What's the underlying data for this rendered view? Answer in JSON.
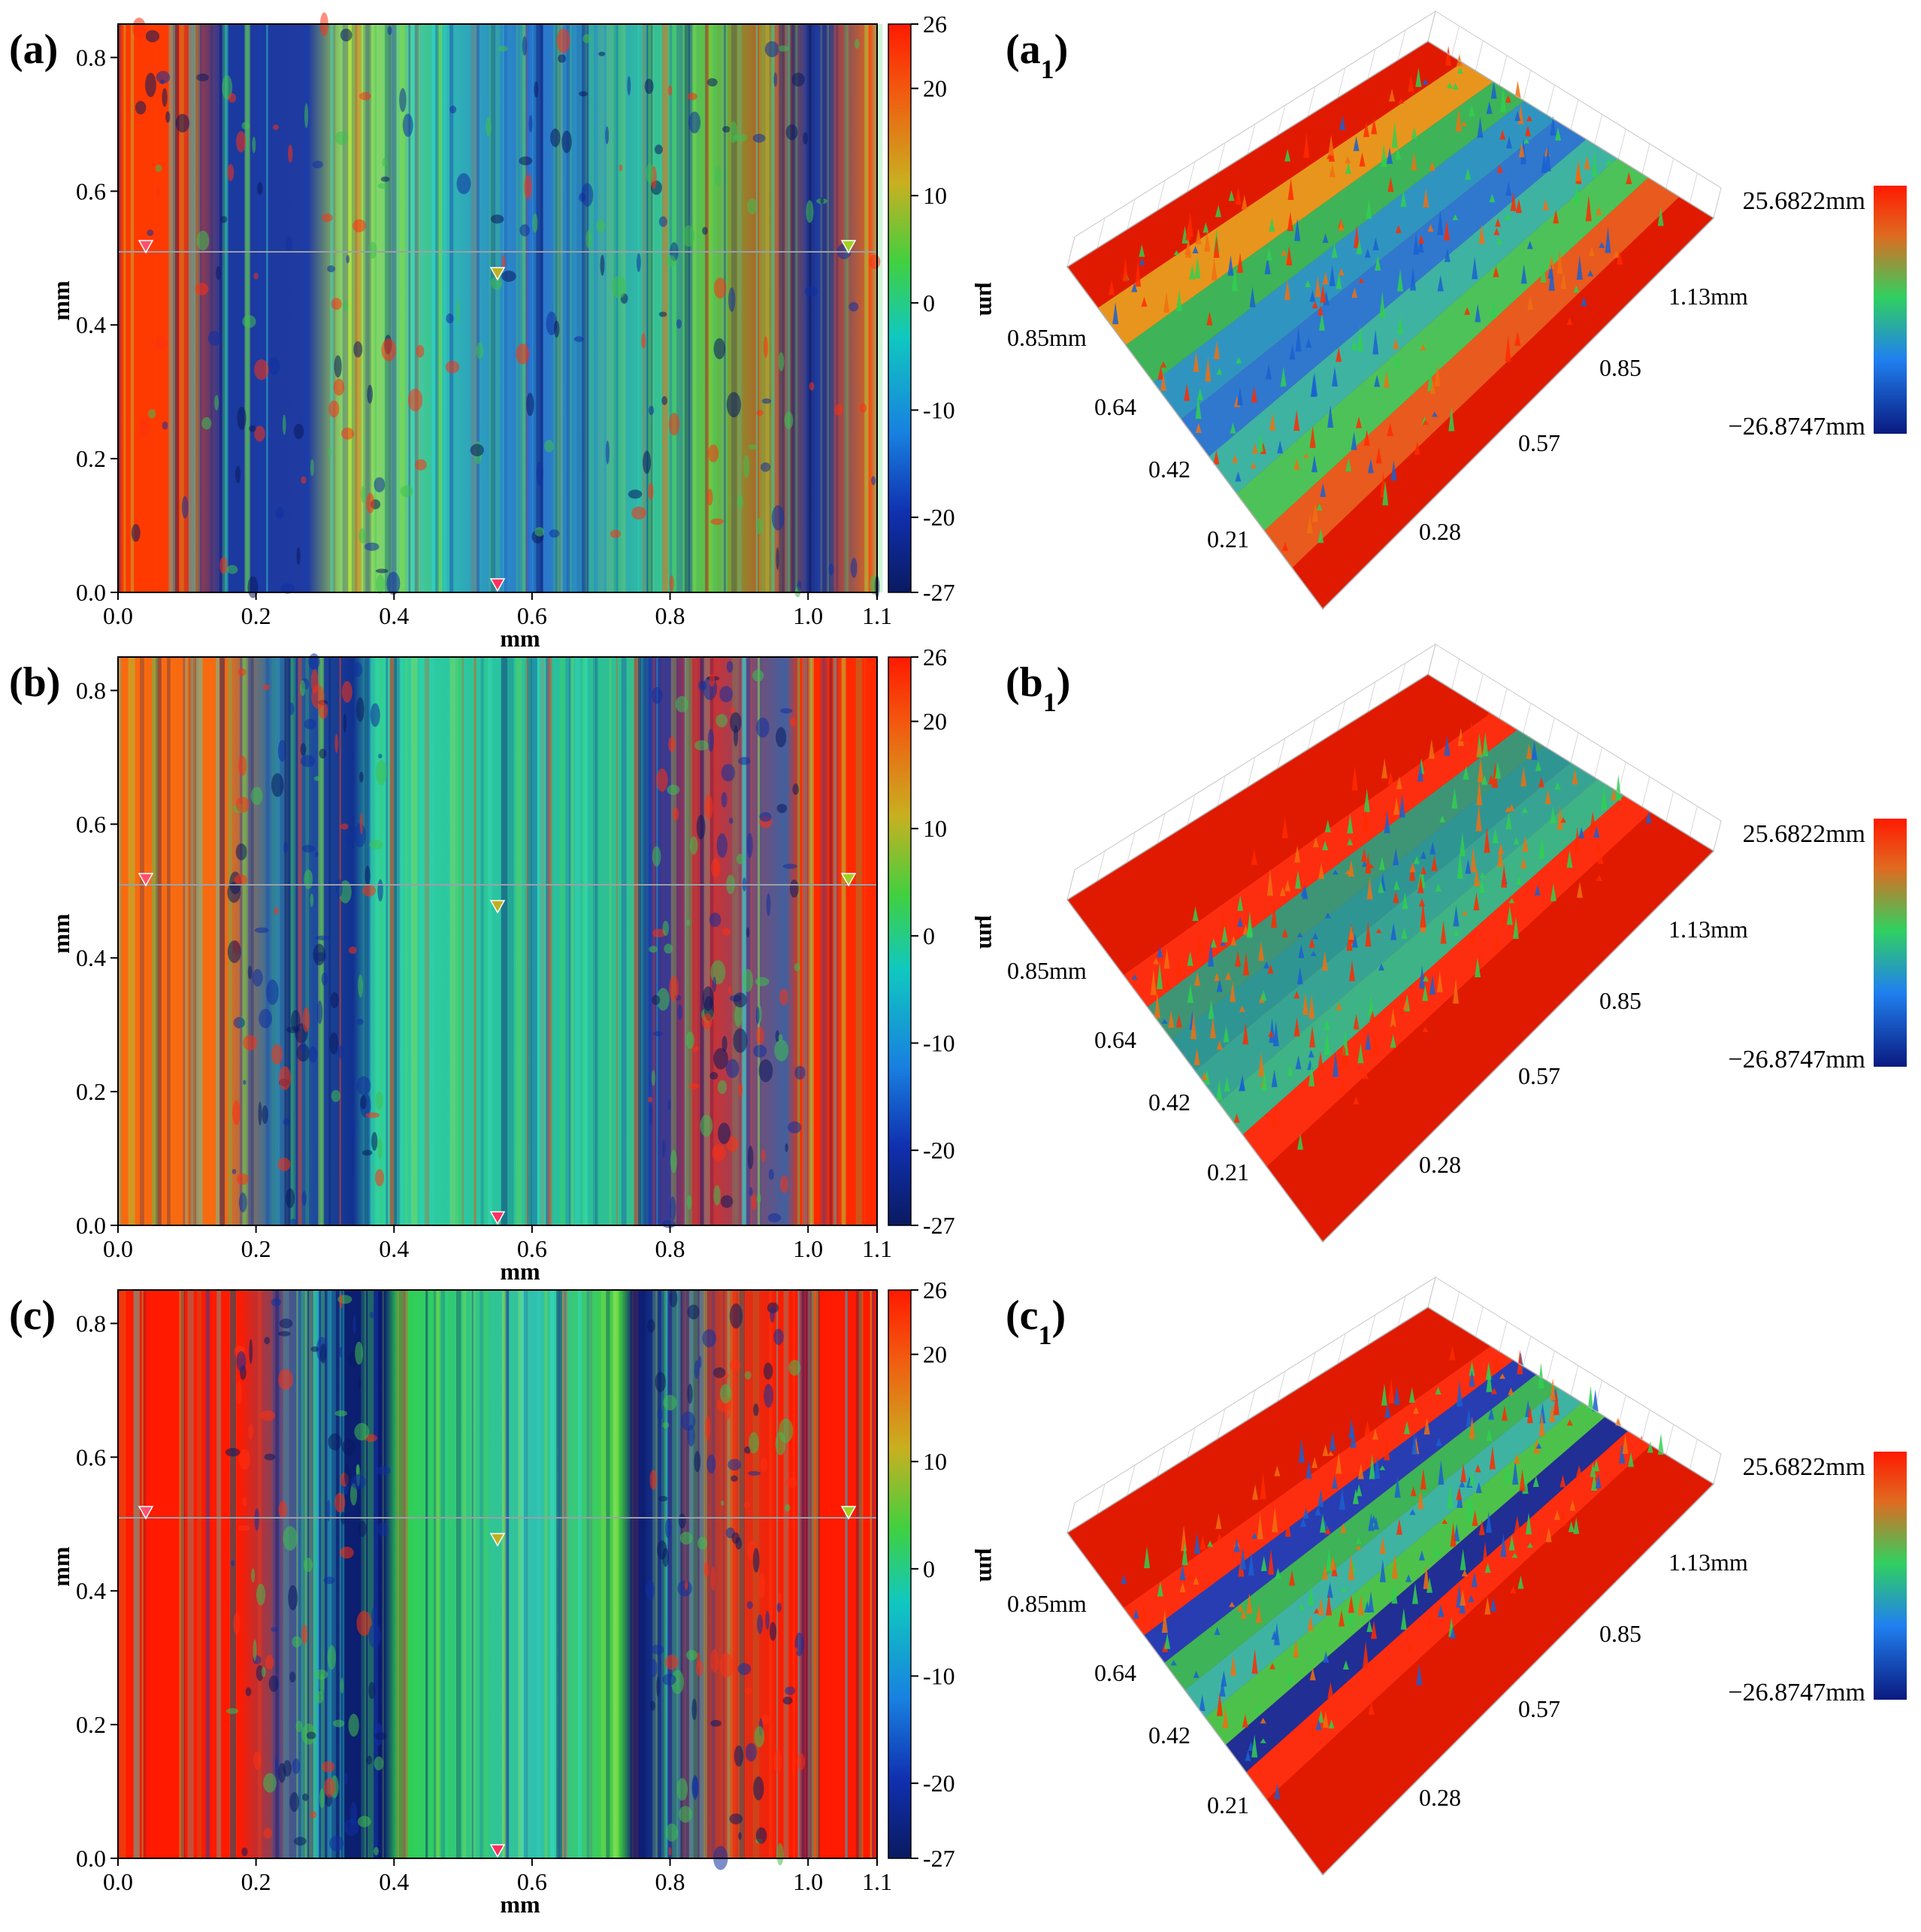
{
  "colorbar": {
    "unit": "μm",
    "ticks": [
      26,
      20,
      10,
      0,
      -10,
      -20,
      -27
    ]
  },
  "axes": {
    "x_label": "mm",
    "y_label": "mm",
    "x_ticks": [
      "0.0",
      "0.2",
      "0.4",
      "0.6",
      "0.8",
      "1.0",
      "1.1"
    ],
    "y_ticks": [
      "0.0",
      "0.2",
      "0.4",
      "0.6",
      "0.8"
    ]
  },
  "surface3d": {
    "max_label": "25.6822mm",
    "min_label": "−26.8747mm",
    "length_axis_label": "1.13mm",
    "length_ticks": [
      "0.85",
      "0.57",
      "0.28"
    ],
    "width_axis_label": "0.85mm",
    "width_ticks": [
      "0.64",
      "0.42",
      "0.21"
    ]
  },
  "panels": [
    {
      "label": "(a)",
      "label3d": "(a",
      "sub": "1",
      "variant": "a"
    },
    {
      "label": "(b)",
      "label3d": "(b",
      "sub": "1",
      "variant": "b"
    },
    {
      "label": "(c)",
      "label3d": "(c",
      "sub": "1",
      "variant": "c"
    }
  ],
  "colors": {
    "red": "#ff2a00",
    "orange": "#f86a10",
    "green": "#2fd23a",
    "teal": "#20c09a",
    "cyan": "#30e0e0",
    "blue": "#1030a0",
    "navy": "#081c6a"
  }
}
